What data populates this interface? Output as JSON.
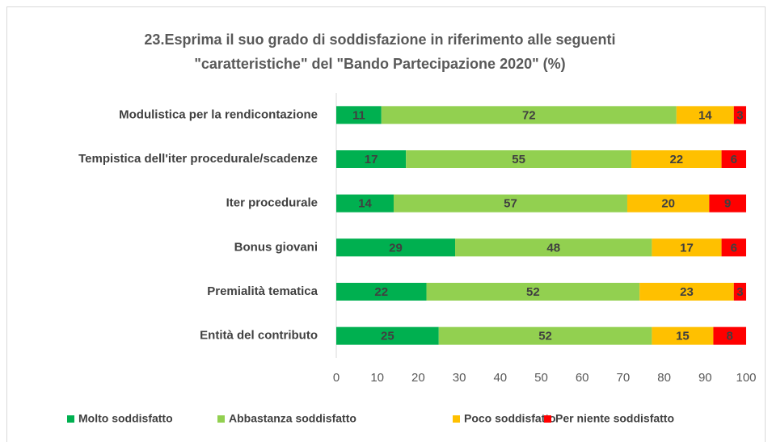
{
  "chart_data": {
    "type": "stacked_barh",
    "title": [
      "23.Esprima il suo grado di soddisfazione in riferimento alle seguenti",
      "\"caratteristiche\" del \"Bando Partecipazione 2020\" (%)"
    ],
    "categories": [
      "Modulistica per la rendicontazione",
      "Tempistica dell'iter procedurale/scadenze",
      "Iter procedurale",
      "Bonus giovani",
      "Premialità tematica",
      "Entità del contributo"
    ],
    "series": [
      {
        "name": "Molto soddisfatto",
        "color": "#00b050",
        "values": [
          11,
          17,
          14,
          29,
          22,
          25
        ]
      },
      {
        "name": "Abbastanza soddisfatto",
        "color": "#92d050",
        "values": [
          72,
          55,
          57,
          48,
          52,
          52
        ]
      },
      {
        "name": "Poco soddisfatto",
        "color": "#ffc000",
        "values": [
          14,
          22,
          20,
          17,
          23,
          15
        ]
      },
      {
        "name": "Per niente soddisfatto",
        "color": "#ff0000",
        "values": [
          3,
          6,
          9,
          6,
          3,
          8
        ]
      }
    ],
    "xlim": [
      0,
      100
    ],
    "xticks": [
      0,
      10,
      20,
      30,
      40,
      50,
      60,
      70,
      80,
      90,
      100
    ],
    "legend": "bottom",
    "grid": false
  }
}
